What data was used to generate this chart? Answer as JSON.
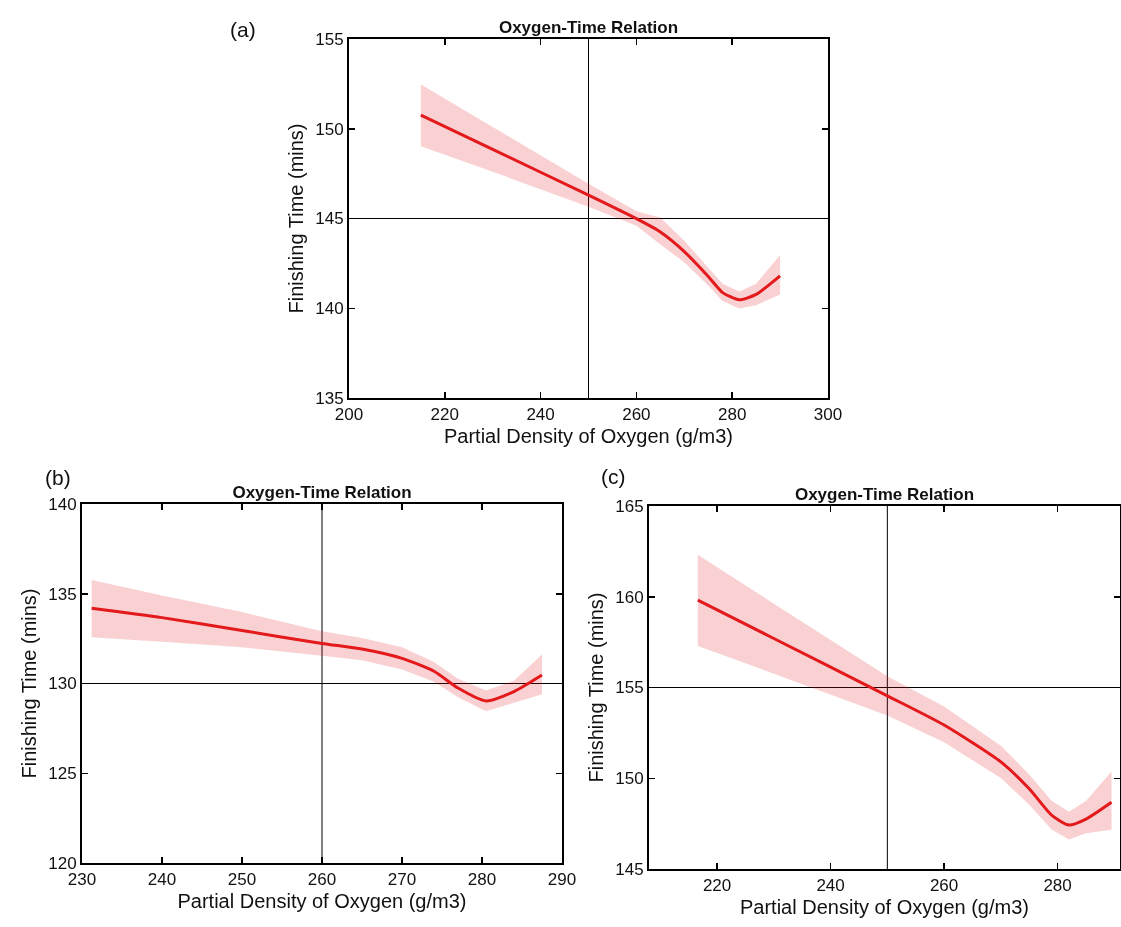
{
  "chart_data": [
    {
      "type": "line",
      "title": "Oxygen-Time Relation",
      "xlabel": "Partial Density of Oxygen (g/m3)",
      "ylabel": "Finishing Time (mins)",
      "annotations": [
        "(a)"
      ],
      "x": [
        215,
        230,
        250,
        260,
        265,
        270,
        275,
        278,
        281.5,
        285,
        290
      ],
      "series": [
        {
          "color": "#e3191c",
          "values": [
            150.76,
            148.85,
            146.3,
            144.99,
            144.25,
            143.16,
            141.77,
            140.87,
            140.47,
            140.77,
            141.8
          ],
          "lower": [
            149.03,
            147.6,
            145.66,
            144.6,
            143.55,
            142.56,
            141.27,
            140.41,
            139.98,
            140.17,
            140.77
          ],
          "upper": [
            152.46,
            150.1,
            146.94,
            145.4,
            145.05,
            143.76,
            142.26,
            141.37,
            140.93,
            141.37,
            142.96
          ]
        }
      ],
      "xlim": [
        200,
        300
      ],
      "xticks": [
        200,
        220,
        240,
        260,
        280,
        300
      ],
      "ylim": [
        135,
        155
      ],
      "yticks": [
        135,
        140,
        145,
        150,
        155
      ],
      "ref_lines": [
        {
          "axis": "x",
          "value": 250,
          "color": "#000000"
        },
        {
          "axis": "y",
          "value": 145,
          "color": "#000000"
        }
      ],
      "grid": false
    },
    {
      "type": "line",
      "title": "Oxygen-Time Relation",
      "xlabel": "Partial Density of Oxygen (g/m3)",
      "ylabel": "Finishing Time (mins)",
      "annotations": [
        "(b)"
      ],
      "x": [
        231.2,
        240,
        250,
        260,
        265,
        270,
        274,
        277,
        280.5,
        284,
        287.5
      ],
      "series": [
        {
          "color": "#e3191c",
          "values": [
            134.19,
            133.67,
            132.95,
            132.23,
            131.92,
            131.4,
            130.68,
            129.75,
            129.03,
            129.55,
            130.47
          ],
          "lower": [
            132.58,
            132.33,
            132.02,
            131.55,
            131.3,
            130.78,
            130.1,
            129.24,
            128.45,
            128.93,
            129.4
          ],
          "upper": [
            135.77,
            134.9,
            133.98,
            132.91,
            132.54,
            132.02,
            131.2,
            130.27,
            129.61,
            130.16,
            131.61
          ]
        }
      ],
      "xlim": [
        230,
        290
      ],
      "xticks": [
        230,
        240,
        250,
        260,
        270,
        280,
        290
      ],
      "ylim": [
        120,
        140
      ],
      "yticks": [
        120,
        125,
        130,
        135,
        140
      ],
      "ref_lines": [
        {
          "axis": "x",
          "value": 260,
          "color": "#000000"
        },
        {
          "axis": "y",
          "value": 130,
          "color": "#000000"
        }
      ],
      "grid": false
    },
    {
      "type": "line",
      "title": "Oxygen-Time Relation",
      "xlabel": "Partial Density of Oxygen (g/m3)",
      "ylabel": "Finishing Time (mins)",
      "annotations": [
        "(c)"
      ],
      "x": [
        216.6,
        230,
        250,
        260,
        270,
        275,
        279,
        282,
        285,
        289.5
      ],
      "series": [
        {
          "color": "#e3191c",
          "values": [
            159.81,
            157.7,
            154.54,
            152.93,
            150.9,
            149.42,
            147.95,
            147.42,
            147.75,
            148.68
          ],
          "lower": [
            157.29,
            155.76,
            153.46,
            151.98,
            150.01,
            148.54,
            147.16,
            146.63,
            146.97,
            147.16
          ],
          "upper": [
            162.31,
            159.62,
            155.62,
            153.95,
            151.79,
            150.21,
            148.74,
            148.15,
            148.74,
            150.37
          ]
        }
      ],
      "xlim": [
        208,
        291
      ],
      "xticks": [
        220,
        240,
        260,
        280
      ],
      "ylim": [
        145,
        165
      ],
      "yticks": [
        145,
        150,
        155,
        160,
        165
      ],
      "ref_lines": [
        {
          "axis": "x",
          "value": 250,
          "color": "#000000"
        },
        {
          "axis": "y",
          "value": 155,
          "color": "#000000"
        }
      ],
      "grid": false
    }
  ]
}
